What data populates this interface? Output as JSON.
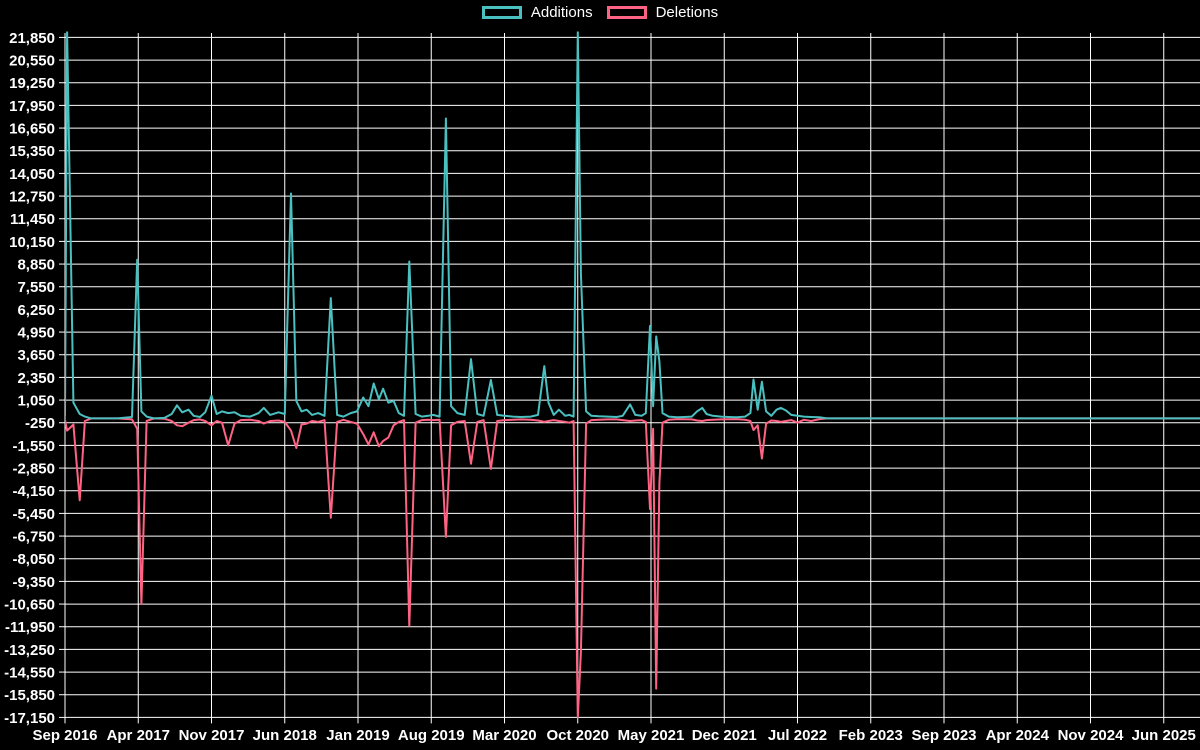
{
  "chart_data": {
    "type": "line",
    "title": "",
    "legend_position": "top",
    "background_color": "#000000",
    "grid": {
      "show": true,
      "color": "#ffffff"
    },
    "text_color": "#ffffff",
    "x_axis": {
      "labels": [
        "Sep 2016",
        "Apr 2017",
        "Nov 2017",
        "Jun 2018",
        "Jan 2019",
        "Aug 2019",
        "Mar 2020",
        "Oct 2020",
        "May 2021",
        "Dec 2021",
        "Jul 2022",
        "Feb 2023",
        "Sep 2023",
        "Apr 2024",
        "Nov 2024",
        "Jun 2025"
      ],
      "months_between_labels": 7
    },
    "y_axis": {
      "max": 21850,
      "min": -17150,
      "step": 1300,
      "tick_labels": [
        "21,850",
        "20,550",
        "19,250",
        "17,950",
        "16,650",
        "15,350",
        "14,050",
        "12,750",
        "11,450",
        "10,150",
        "8,850",
        "7,550",
        "6,250",
        "4,950",
        "3,650",
        "2,350",
        "1,050",
        "-250",
        "-1,550",
        "-2,850",
        "-4,150",
        "-5,450",
        "-6,750",
        "-8,050",
        "-9,350",
        "-10,650",
        "-11,950",
        "-13,250",
        "-14,550",
        "-15,850",
        "-17,150"
      ]
    },
    "x_unit": "months since Sep 2016",
    "x": [
      0,
      0.2,
      0.8,
      1.4,
      1.9,
      2.5,
      3.5,
      5,
      6.4,
      6.9,
      7.3,
      7.8,
      8.5,
      9.5,
      10.2,
      10.7,
      11.2,
      11.8,
      12.3,
      12.9,
      13.4,
      14,
      14.5,
      15,
      15.6,
      16.2,
      16.8,
      17.7,
      18.5,
      19,
      19.6,
      20.4,
      21,
      21.6,
      22.1,
      22.6,
      23.1,
      23.6,
      24.2,
      24.8,
      25.4,
      26,
      26.6,
      27.3,
      27.9,
      28.5,
      29,
      29.5,
      30,
      30.4,
      30.9,
      31.4,
      31.9,
      32.4,
      32.9,
      33.5,
      34.1,
      34.7,
      35.2,
      35.8,
      36.4,
      36.9,
      37.5,
      38.2,
      38.8,
      39.4,
      40,
      40.7,
      41.3,
      42,
      42.8,
      43.6,
      44.5,
      45.2,
      45.8,
      46.2,
      46.7,
      47.2,
      47.8,
      48.2,
      48.6,
      49,
      49.3,
      49.8,
      50.3,
      51,
      51.9,
      52.7,
      53.3,
      54,
      54.5,
      55.1,
      55.5,
      55.9,
      56.2,
      56.5,
      56.8,
      57.1,
      57.7,
      58.5,
      59.2,
      59.9,
      60.4,
      60.9,
      61.3,
      61.9,
      62.7,
      63.4,
      64.2,
      65,
      65.5,
      65.8,
      66.2,
      66.6,
      67,
      67.5,
      68,
      68.4,
      68.9,
      69.4,
      70,
      70.6,
      71.3,
      72.1,
      72.8,
      75,
      80,
      85,
      90,
      95,
      100,
      105,
      108.5
    ],
    "series": [
      {
        "name": "Additions",
        "color": "#4BC0C0",
        "values": [
          150,
          22200,
          900,
          250,
          100,
          0,
          0,
          0,
          80,
          9100,
          400,
          100,
          0,
          30,
          250,
          750,
          350,
          500,
          150,
          80,
          350,
          1300,
          250,
          400,
          300,
          350,
          150,
          100,
          300,
          600,
          200,
          350,
          250,
          12900,
          1000,
          400,
          500,
          200,
          300,
          150,
          6900,
          200,
          100,
          300,
          400,
          1200,
          700,
          2000,
          1100,
          1700,
          900,
          1000,
          300,
          150,
          9000,
          250,
          100,
          150,
          200,
          100,
          17200,
          700,
          300,
          200,
          3400,
          250,
          150,
          2200,
          200,
          150,
          100,
          80,
          100,
          200,
          3000,
          900,
          200,
          500,
          150,
          200,
          100,
          22200,
          8300,
          400,
          150,
          120,
          100,
          80,
          150,
          800,
          200,
          150,
          300,
          5300,
          700,
          4700,
          3270,
          300,
          100,
          60,
          80,
          100,
          400,
          600,
          250,
          150,
          100,
          80,
          60,
          100,
          300,
          2230,
          500,
          2100,
          400,
          150,
          500,
          600,
          450,
          200,
          150,
          100,
          80,
          60,
          0,
          0,
          0,
          0,
          0,
          0,
          0,
          0,
          0
        ]
      },
      {
        "name": "Deletions",
        "color": "#FF6384",
        "values": [
          -100,
          -700,
          -350,
          -4700,
          -150,
          0,
          0,
          0,
          -60,
          -600,
          -10650,
          -150,
          0,
          -20,
          -150,
          -400,
          -450,
          -250,
          -100,
          -60,
          -150,
          -400,
          -150,
          -250,
          -1550,
          -300,
          -100,
          -80,
          -150,
          -300,
          -150,
          -120,
          -200,
          -700,
          -1700,
          -350,
          -300,
          -150,
          -200,
          -100,
          -5700,
          -200,
          -80,
          -200,
          -300,
          -900,
          -1500,
          -800,
          -1600,
          -1300,
          -1100,
          -400,
          -200,
          -100,
          -11900,
          -250,
          -100,
          -80,
          -100,
          -80,
          -6800,
          -400,
          -200,
          -150,
          -2600,
          -200,
          -100,
          -2900,
          -150,
          -100,
          -80,
          -60,
          -80,
          -120,
          -200,
          -150,
          -100,
          -150,
          -200,
          -250,
          -150,
          -17150,
          -13400,
          -300,
          -100,
          -80,
          -60,
          -60,
          -100,
          -150,
          -120,
          -100,
          -200,
          -5200,
          -600,
          -15500,
          -3700,
          -250,
          -80,
          -40,
          -50,
          -60,
          -120,
          -150,
          -100,
          -80,
          -60,
          -50,
          -40,
          -80,
          -150,
          -670,
          -400,
          -2300,
          -300,
          -120,
          -150,
          -200,
          -150,
          -100,
          -250,
          -80,
          -150,
          -40,
          0,
          0,
          0,
          0,
          0,
          0,
          0,
          0,
          0
        ]
      }
    ]
  },
  "legend": {
    "items": [
      {
        "label": "Additions",
        "color": "#4BC0C0"
      },
      {
        "label": "Deletions",
        "color": "#FF6384"
      }
    ]
  }
}
